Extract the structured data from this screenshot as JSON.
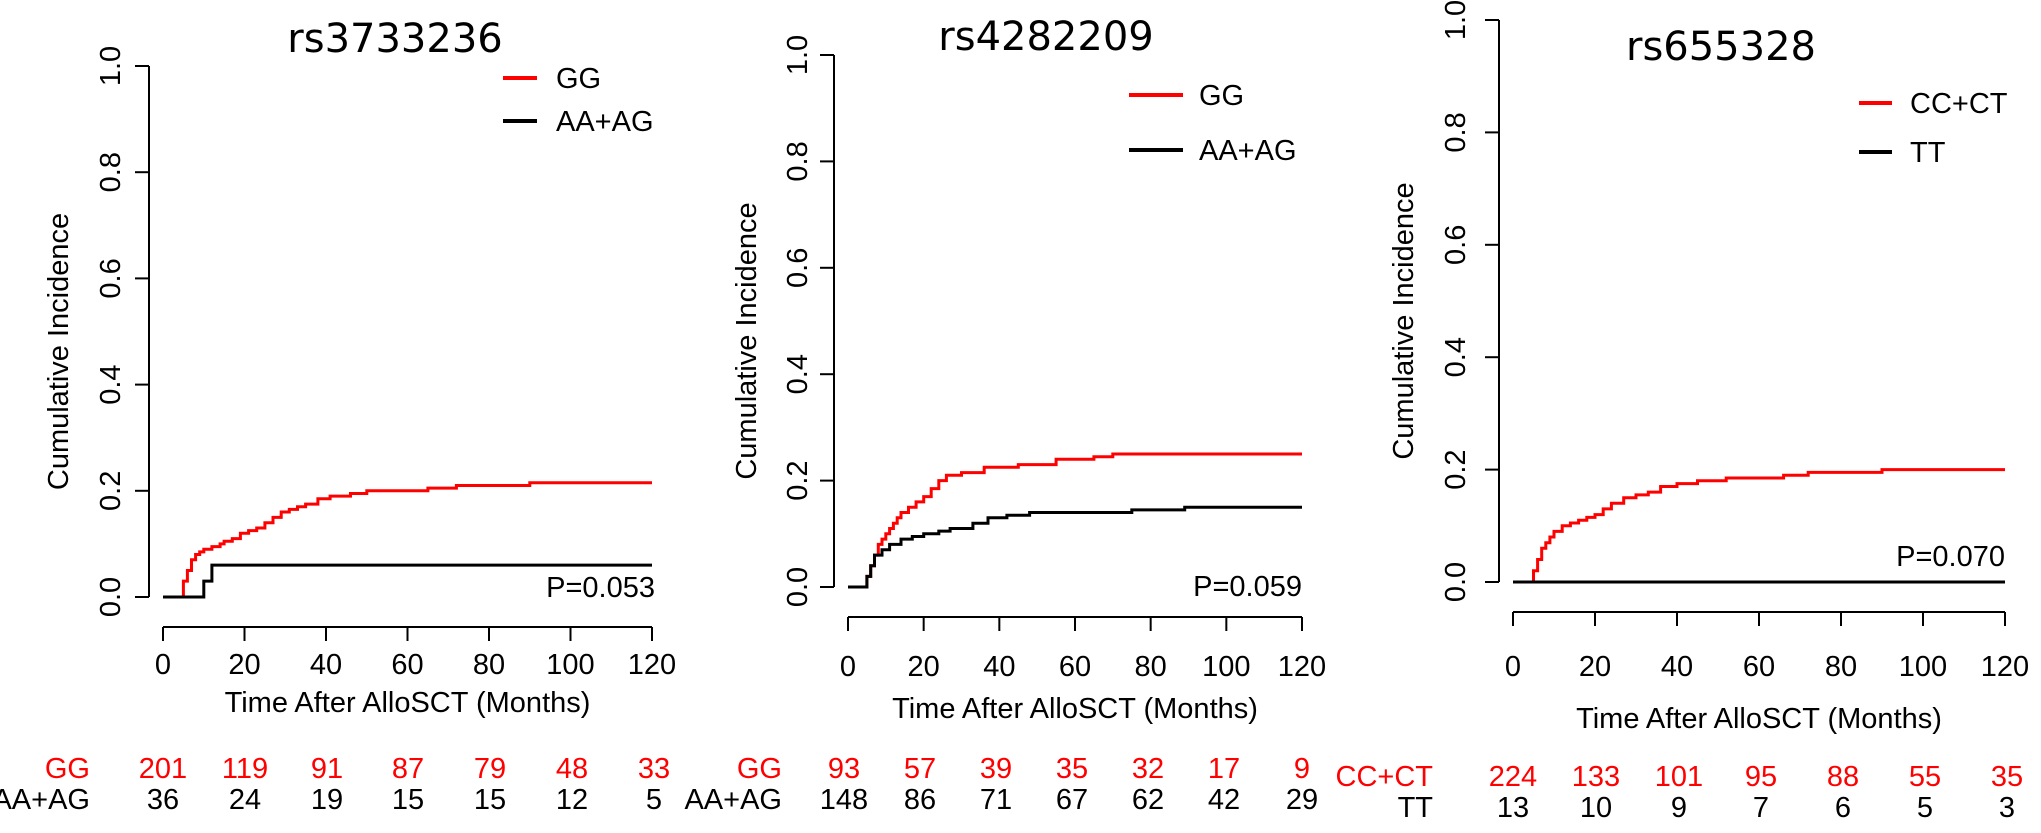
{
  "figure": {
    "colors": {
      "risk_group_1": "#ff0000",
      "risk_group_2": "#000000"
    }
  },
  "chart_data": [
    {
      "type": "line",
      "step": true,
      "title": "rs3733236",
      "xlabel": "Time After AlloSCT (Months)",
      "ylabel": "Cumulative Incidence",
      "xlim": [
        0,
        120
      ],
      "ylim": [
        0,
        1
      ],
      "xticks": [
        "0",
        "20",
        "40",
        "60",
        "80",
        "100",
        "120"
      ],
      "yticks": [
        "0.0",
        "0.2",
        "0.4",
        "0.6",
        "0.8",
        "1.0"
      ],
      "grid": false,
      "legend_position": "top-right",
      "annotation": "P=0.053",
      "series": [
        {
          "name": "GG",
          "color": "#ff0000",
          "x": [
            0,
            4,
            5,
            6,
            7,
            8,
            9,
            10,
            12,
            14,
            15,
            17,
            19,
            21,
            23,
            25,
            27,
            29,
            31,
            33,
            35,
            38,
            41,
            46,
            50,
            58,
            65,
            72,
            90,
            120
          ],
          "y": [
            0,
            0,
            0.03,
            0.05,
            0.07,
            0.08,
            0.085,
            0.09,
            0.095,
            0.1,
            0.105,
            0.11,
            0.12,
            0.125,
            0.13,
            0.14,
            0.15,
            0.16,
            0.165,
            0.17,
            0.175,
            0.185,
            0.19,
            0.195,
            0.2,
            0.2,
            0.205,
            0.21,
            0.215,
            0.215
          ]
        },
        {
          "name": "AA+AG",
          "color": "#000000",
          "x": [
            0,
            9,
            10,
            12,
            120
          ],
          "y": [
            0,
            0,
            0.03,
            0.06,
            0.06
          ]
        }
      ],
      "risk_table": {
        "rows": [
          {
            "label": "GG",
            "color": "#ff0000",
            "values": [
              "201",
              "119",
              "91",
              "87",
              "79",
              "48",
              "33"
            ]
          },
          {
            "label": "AA+AG",
            "color": "#000000",
            "values": [
              "36",
              "24",
              "19",
              "15",
              "15",
              "12",
              "5"
            ]
          }
        ]
      }
    },
    {
      "type": "line",
      "step": true,
      "title": "rs4282209",
      "xlabel": "Time After AlloSCT (Months)",
      "ylabel": "Cumulative Incidence",
      "xlim": [
        0,
        120
      ],
      "ylim": [
        0,
        1
      ],
      "xticks": [
        "0",
        "20",
        "40",
        "60",
        "80",
        "100",
        "120"
      ],
      "yticks": [
        "0.0",
        "0.2",
        "0.4",
        "0.6",
        "0.8",
        "1.0"
      ],
      "grid": false,
      "legend_position": "top-right",
      "annotation": "P=0.059",
      "series": [
        {
          "name": "GG",
          "color": "#ff0000",
          "x": [
            0,
            4,
            5,
            6,
            7,
            8,
            9,
            10,
            11,
            12,
            13,
            14,
            16,
            18,
            20,
            22,
            24,
            26,
            30,
            36,
            45,
            55,
            65,
            70,
            120
          ],
          "y": [
            0,
            0,
            0.02,
            0.04,
            0.06,
            0.08,
            0.09,
            0.1,
            0.11,
            0.12,
            0.13,
            0.14,
            0.15,
            0.16,
            0.17,
            0.185,
            0.2,
            0.21,
            0.215,
            0.225,
            0.23,
            0.24,
            0.245,
            0.25,
            0.25
          ]
        },
        {
          "name": "AA+AG",
          "color": "#000000",
          "x": [
            0,
            4,
            5,
            6,
            7,
            9,
            11,
            14,
            17,
            20,
            24,
            27,
            33,
            37,
            42,
            48,
            60,
            75,
            89,
            120
          ],
          "y": [
            0,
            0,
            0.02,
            0.04,
            0.06,
            0.07,
            0.08,
            0.09,
            0.095,
            0.1,
            0.105,
            0.11,
            0.12,
            0.13,
            0.135,
            0.14,
            0.14,
            0.145,
            0.15,
            0.15
          ]
        }
      ],
      "risk_table": {
        "rows": [
          {
            "label": "GG",
            "color": "#ff0000",
            "values": [
              "93",
              "57",
              "39",
              "35",
              "32",
              "17",
              "9"
            ]
          },
          {
            "label": "AA+AG",
            "color": "#000000",
            "values": [
              "148",
              "86",
              "71",
              "67",
              "62",
              "42",
              "29"
            ]
          }
        ]
      }
    },
    {
      "type": "line",
      "step": true,
      "title": "rs655328",
      "xlabel": "Time After AlloSCT (Months)",
      "ylabel": "Cumulative Incidence",
      "xlim": [
        0,
        120
      ],
      "ylim": [
        0,
        1
      ],
      "xticks": [
        "0",
        "20",
        "40",
        "60",
        "80",
        "100",
        "120"
      ],
      "yticks": [
        "0.0",
        "0.2",
        "0.4",
        "0.6",
        "0.8",
        "1.0"
      ],
      "grid": false,
      "legend_position": "top-right",
      "annotation": "P=0.070",
      "series": [
        {
          "name": "CC+CT",
          "color": "#ff0000",
          "x": [
            0,
            4,
            5,
            6,
            7,
            8,
            9,
            10,
            12,
            14,
            16,
            18,
            20,
            22,
            24,
            27,
            30,
            33,
            36,
            40,
            45,
            52,
            60,
            66,
            72,
            90,
            120
          ],
          "y": [
            0,
            0,
            0.02,
            0.04,
            0.06,
            0.07,
            0.08,
            0.09,
            0.1,
            0.105,
            0.11,
            0.115,
            0.12,
            0.13,
            0.14,
            0.15,
            0.155,
            0.16,
            0.17,
            0.175,
            0.18,
            0.185,
            0.185,
            0.19,
            0.195,
            0.2,
            0.2
          ]
        },
        {
          "name": "TT",
          "color": "#000000",
          "x": [
            0,
            120
          ],
          "y": [
            0,
            0
          ]
        }
      ],
      "risk_table": {
        "rows": [
          {
            "label": "CC+CT",
            "color": "#ff0000",
            "values": [
              "224",
              "133",
              "101",
              "95",
              "88",
              "55",
              "35"
            ]
          },
          {
            "label": "TT",
            "color": "#000000",
            "values": [
              "13",
              "10",
              "9",
              "7",
              "6",
              "5",
              "3"
            ]
          }
        ]
      }
    }
  ]
}
